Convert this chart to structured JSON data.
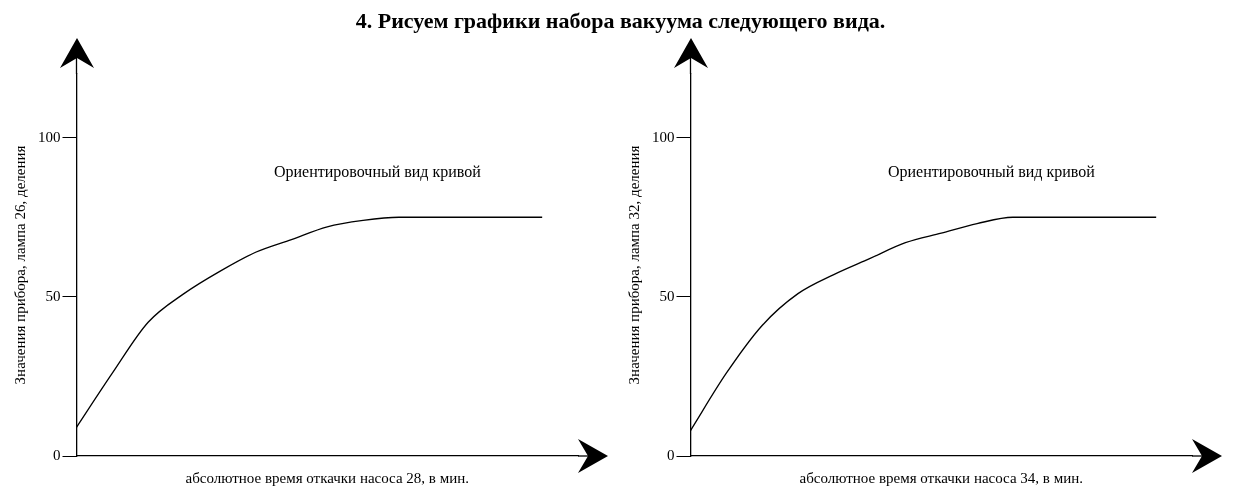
{
  "chart_data": [
    {
      "type": "line",
      "title": "4. Рисуем графики набора вакуума следующего вида.",
      "ylabel": "Значения прибора, лампа 26, деления",
      "xlabel": "абсолютное время откачки насоса 28, в мин.",
      "annotations": [
        "Ориентировочный вид кривой"
      ],
      "categories": [
        null,
        null,
        null,
        null,
        null,
        null,
        null,
        null,
        null,
        null,
        null,
        null,
        null,
        null,
        null
      ],
      "series": [
        {
          "color": "#000000",
          "values": [
            9,
            26,
            42,
            51,
            58,
            64,
            68,
            72,
            74,
            75,
            75,
            75,
            75,
            75,
            null
          ]
        }
      ],
      "ylim": [
        0,
        120
      ],
      "yticks": [
        0,
        50,
        100
      ],
      "grid": false,
      "legend": false,
      "marker": "none",
      "line_style": "solid"
    },
    {
      "type": "line",
      "ylabel": "Значения прибора, лампа 32, деления",
      "xlabel": "абсолютное время откачки насоса 34, в мин.",
      "annotations": [
        "Ориентировочный вид кривой"
      ],
      "categories": [
        null,
        null,
        null,
        null,
        null,
        null,
        null,
        null,
        null,
        null,
        null,
        null,
        null,
        null,
        null
      ],
      "series": [
        {
          "color": "#000000",
          "values": [
            8,
            26,
            41,
            51,
            57,
            62,
            67,
            70,
            73,
            75,
            75,
            75,
            75,
            75,
            null
          ]
        }
      ],
      "ylim": [
        0,
        120
      ],
      "yticks": [
        0,
        50,
        100
      ],
      "grid": false,
      "legend": false,
      "marker": "none",
      "line_style": "solid"
    }
  ]
}
